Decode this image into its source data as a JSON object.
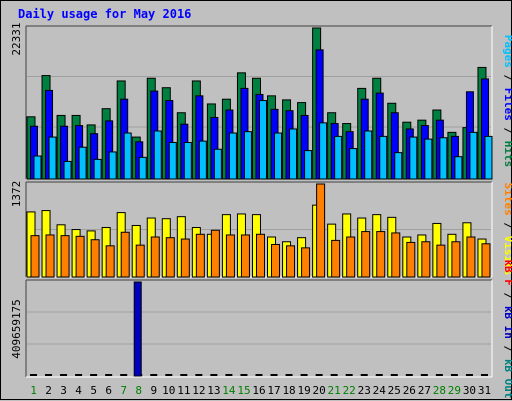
{
  "title": "Daily usage for May 2016",
  "colors": {
    "hits": "#008040",
    "files": "#0000ff",
    "pages": "#00c0ff",
    "visits": "#ffff00",
    "sites": "#ff8000",
    "kbytes_in": "#0000c0",
    "kbytes_out": "#008080",
    "kbytes_f": "#ff0000",
    "weekend_label": "#008000",
    "weekday_label": "#000000",
    "grid": "#a0a0a0",
    "panel_bg": "#c0c0c0"
  },
  "chart_data": [
    {
      "type": "bar",
      "title": "Hits / Files / Pages",
      "ymax_label": "22331",
      "legend": [
        {
          "text": "Pages",
          "color": "#00c0ff"
        },
        {
          "text": " / ",
          "color": "#000000"
        },
        {
          "text": "Files",
          "color": "#0000ff"
        },
        {
          "text": " / ",
          "color": "#000000"
        },
        {
          "text": "Hits",
          "color": "#008040"
        }
      ],
      "ylim": [
        0,
        22331
      ],
      "categories": [
        "1",
        "2",
        "3",
        "4",
        "5",
        "6",
        "7",
        "8",
        "9",
        "10",
        "11",
        "12",
        "13",
        "14",
        "15",
        "16",
        "17",
        "18",
        "19",
        "20",
        "21",
        "22",
        "23",
        "24",
        "25",
        "26",
        "27",
        "28",
        "29",
        "30",
        "31"
      ],
      "series": [
        {
          "name": "Hits",
          "values": [
            9200,
            15300,
            9400,
            9400,
            8000,
            10400,
            14500,
            6200,
            14900,
            13500,
            9800,
            14500,
            11100,
            11800,
            15700,
            14900,
            12300,
            11700,
            11300,
            22331,
            9800,
            8200,
            13400,
            14900,
            11200,
            8400,
            8700,
            10200,
            6900,
            7600,
            16500
          ]
        },
        {
          "name": "Files",
          "values": [
            7800,
            13100,
            7800,
            7900,
            6700,
            8600,
            11800,
            5500,
            13000,
            11600,
            8100,
            12300,
            9100,
            10200,
            13400,
            12500,
            10300,
            10100,
            9400,
            19100,
            8200,
            7000,
            11800,
            12700,
            9800,
            7400,
            7900,
            8700,
            6300,
            12900,
            14800
          ]
        },
        {
          "name": "Pages",
          "values": [
            3400,
            6200,
            2600,
            4700,
            2900,
            4000,
            6800,
            3200,
            7100,
            5400,
            5400,
            5600,
            4400,
            6800,
            7000,
            11600,
            6800,
            7400,
            4200,
            8300,
            6300,
            4500,
            7100,
            6300,
            3900,
            6200,
            5900,
            6100,
            3300,
            6900,
            6300
          ]
        }
      ]
    },
    {
      "type": "bar",
      "title": "Visits / Sites",
      "ymax_label": "1372",
      "legend": [
        {
          "text": "Sites",
          "color": "#ff8000"
        },
        {
          "text": " / ",
          "color": "#000000"
        },
        {
          "text": "Visits",
          "color": "#ffff00"
        }
      ],
      "ylim": [
        0,
        1372
      ],
      "categories": [
        "1",
        "2",
        "3",
        "4",
        "5",
        "6",
        "7",
        "8",
        "9",
        "10",
        "11",
        "12",
        "13",
        "14",
        "15",
        "16",
        "17",
        "18",
        "19",
        "20",
        "21",
        "22",
        "23",
        "24",
        "25",
        "26",
        "27",
        "28",
        "29",
        "30",
        "31"
      ],
      "series": [
        {
          "name": "Visits",
          "values": [
            960,
            980,
            770,
            700,
            680,
            730,
            950,
            760,
            870,
            860,
            890,
            730,
            630,
            920,
            930,
            920,
            590,
            520,
            580,
            1060,
            780,
            930,
            870,
            920,
            880,
            590,
            620,
            790,
            630,
            800,
            560
          ]
        },
        {
          "name": "Sites",
          "values": [
            610,
            620,
            610,
            600,
            550,
            460,
            660,
            470,
            590,
            580,
            560,
            630,
            690,
            620,
            620,
            630,
            480,
            460,
            430,
            1372,
            540,
            590,
            670,
            670,
            650,
            510,
            520,
            470,
            520,
            590,
            490
          ]
        }
      ]
    },
    {
      "type": "bar",
      "title": "KBytes",
      "ymax_label": "409659175",
      "legend": [
        {
          "text": "kB F",
          "color": "#ff0000"
        },
        {
          "text": " / ",
          "color": "#000000"
        },
        {
          "text": "kB In",
          "color": "#0000c0"
        },
        {
          "text": " / ",
          "color": "#000000"
        },
        {
          "text": "kB Out",
          "color": "#008080"
        }
      ],
      "ylim": [
        0,
        409659175
      ],
      "categories": [
        "1",
        "2",
        "3",
        "4",
        "5",
        "6",
        "7",
        "8",
        "9",
        "10",
        "11",
        "12",
        "13",
        "14",
        "15",
        "16",
        "17",
        "18",
        "19",
        "20",
        "21",
        "22",
        "23",
        "24",
        "25",
        "26",
        "27",
        "28",
        "29",
        "30",
        "31"
      ],
      "series": [
        {
          "name": "kB In",
          "values": [
            0,
            0,
            0,
            0,
            0,
            0,
            0,
            409659175,
            0,
            0,
            0,
            0,
            0,
            0,
            0,
            0,
            0,
            0,
            0,
            0,
            0,
            0,
            0,
            0,
            0,
            0,
            0,
            0,
            0,
            0,
            0
          ]
        }
      ]
    }
  ],
  "x_labels": [
    {
      "text": "1",
      "weekend": true
    },
    {
      "text": "2",
      "weekend": false
    },
    {
      "text": "3",
      "weekend": false
    },
    {
      "text": "4",
      "weekend": false
    },
    {
      "text": "5",
      "weekend": false
    },
    {
      "text": "6",
      "weekend": false
    },
    {
      "text": "7",
      "weekend": true
    },
    {
      "text": "8",
      "weekend": true
    },
    {
      "text": "9",
      "weekend": false
    },
    {
      "text": "10",
      "weekend": false
    },
    {
      "text": "11",
      "weekend": false
    },
    {
      "text": "12",
      "weekend": false
    },
    {
      "text": "13",
      "weekend": false
    },
    {
      "text": "14",
      "weekend": true
    },
    {
      "text": "15",
      "weekend": true
    },
    {
      "text": "16",
      "weekend": false
    },
    {
      "text": "17",
      "weekend": false
    },
    {
      "text": "18",
      "weekend": false
    },
    {
      "text": "19",
      "weekend": false
    },
    {
      "text": "20",
      "weekend": false
    },
    {
      "text": "21",
      "weekend": true
    },
    {
      "text": "22",
      "weekend": true
    },
    {
      "text": "23",
      "weekend": false
    },
    {
      "text": "24",
      "weekend": false
    },
    {
      "text": "25",
      "weekend": false
    },
    {
      "text": "26",
      "weekend": false
    },
    {
      "text": "27",
      "weekend": false
    },
    {
      "text": "28",
      "weekend": true
    },
    {
      "text": "29",
      "weekend": true
    },
    {
      "text": "30",
      "weekend": false
    },
    {
      "text": "31",
      "weekend": false
    }
  ]
}
